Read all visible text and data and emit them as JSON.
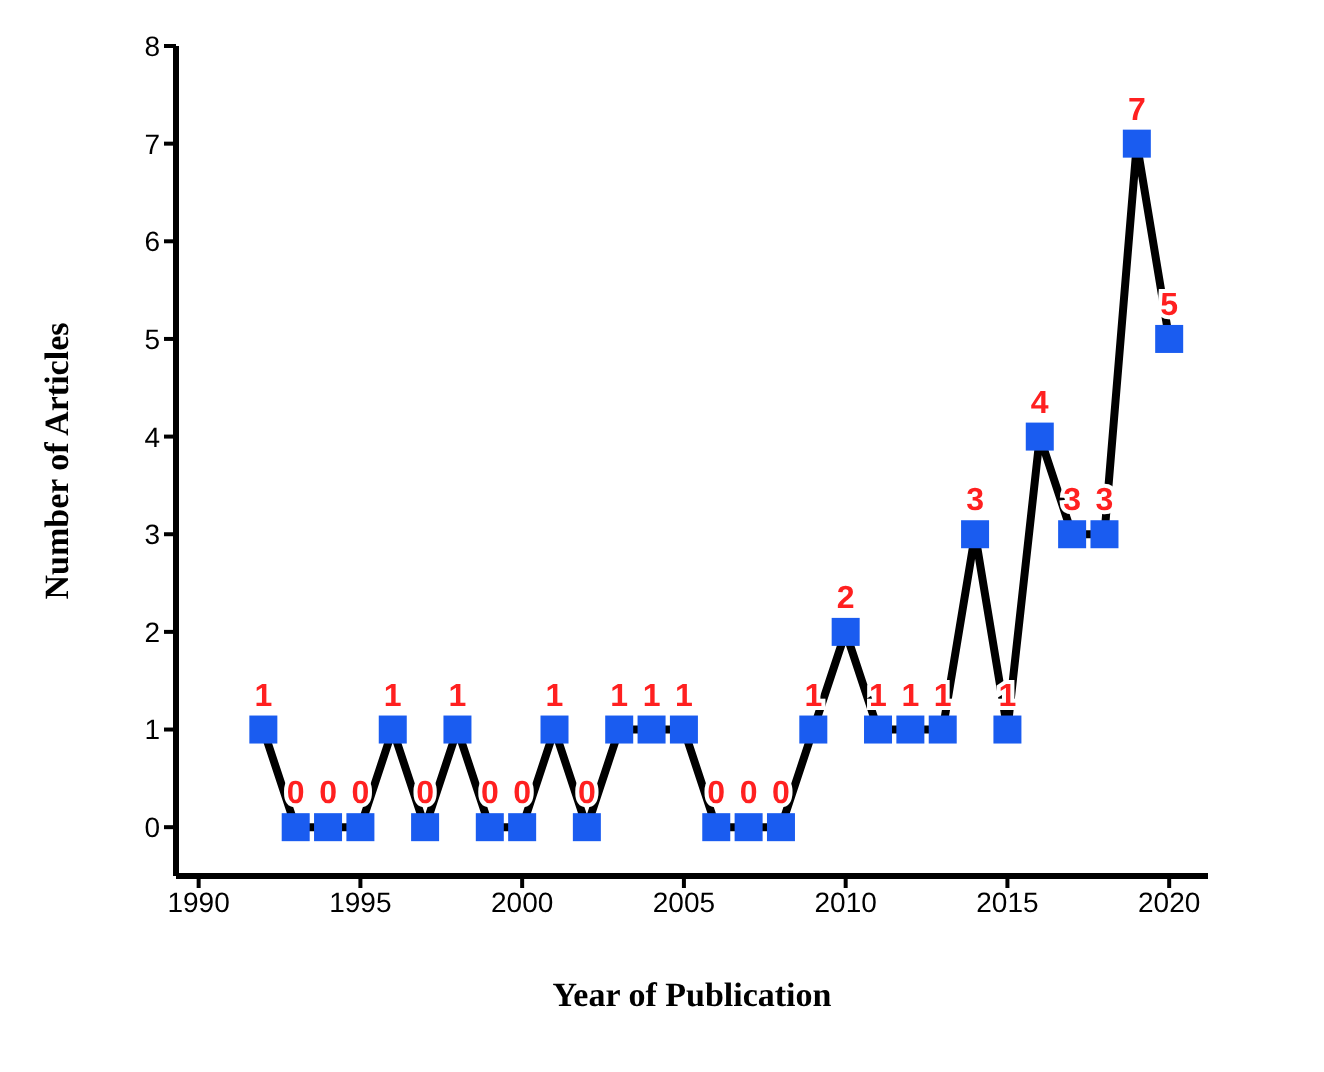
{
  "chart_data": {
    "type": "line",
    "xlabel": "Year of Publication",
    "ylabel": "Number of Articles",
    "x": [
      1992,
      1993,
      1994,
      1995,
      1996,
      1997,
      1998,
      1999,
      2000,
      2001,
      2002,
      2003,
      2004,
      2005,
      2006,
      2007,
      2008,
      2009,
      2010,
      2011,
      2012,
      2013,
      2014,
      2015,
      2016,
      2017,
      2018,
      2019,
      2020
    ],
    "series": [
      {
        "color": "#1a5cf0",
        "values": [
          1,
          0,
          0,
          0,
          1,
          0,
          1,
          0,
          0,
          1,
          0,
          1,
          1,
          1,
          0,
          0,
          0,
          1,
          2,
          1,
          1,
          1,
          3,
          1,
          4,
          3,
          3,
          7,
          5
        ]
      }
    ],
    "xlim": [
      1989.3,
      2021.2
    ],
    "xticks": [
      1990,
      1995,
      2000,
      2005,
      2010,
      2015,
      2020
    ],
    "ylim": [
      -0.5,
      8
    ],
    "yticks": [
      0,
      1,
      2,
      3,
      4,
      5,
      6,
      7,
      8
    ],
    "data_labels": true,
    "marker": "square",
    "line_style": "solid",
    "grid": false
  }
}
